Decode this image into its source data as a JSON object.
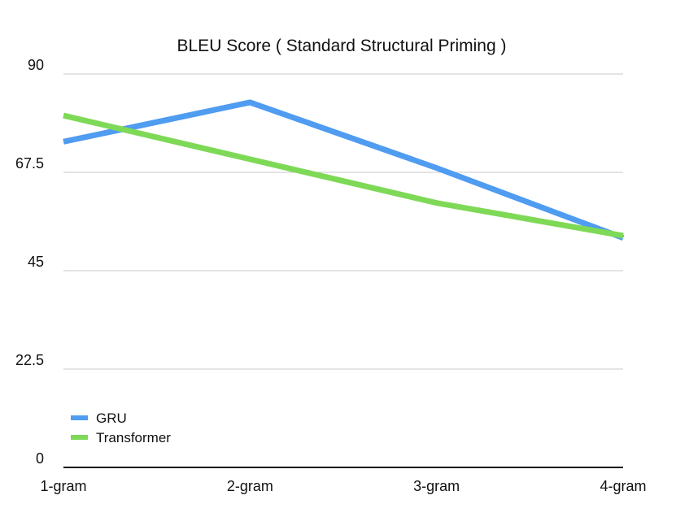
{
  "chart_data": {
    "type": "line",
    "title": "BLEU Score ( Standard Structural Priming )",
    "xlabel": "",
    "ylabel": "",
    "categories": [
      "1-gram",
      "2-gram",
      "3-gram",
      "4-gram"
    ],
    "ylim": [
      0,
      90
    ],
    "yticks": [
      "0",
      "22.5",
      "45",
      "67.5",
      "90"
    ],
    "grid": true,
    "legend_position": "bottom-left",
    "series": [
      {
        "name": "GRU",
        "color": "#4f9cf0",
        "values": [
          74.5,
          83.5,
          68.5,
          52.5
        ]
      },
      {
        "name": "Transformer",
        "color": "#7ed957",
        "values": [
          80.5,
          70.5,
          60.5,
          53.0
        ]
      }
    ]
  }
}
